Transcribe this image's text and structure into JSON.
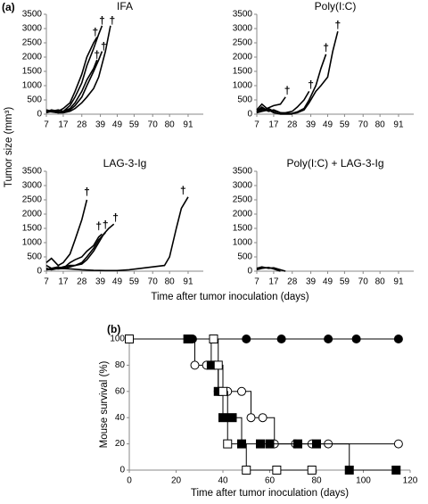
{
  "figure": {
    "label_a": "(a)",
    "label_b": "(b)",
    "y_label_a": "Tumor size (mm³)",
    "x_label_a": "Time after tumor inoculation (days)"
  },
  "chart_data": [
    {
      "type": "line",
      "title": "IFA",
      "xlim": [
        7,
        100
      ],
      "xticks": [
        7,
        17,
        28,
        39,
        49,
        59,
        70,
        80,
        91
      ],
      "ylim": [
        0,
        3500
      ],
      "yticks": [
        0,
        500,
        1000,
        1500,
        2000,
        2500,
        3000,
        3500
      ],
      "series": [
        {
          "color": "#000000",
          "x": [
            7,
            10,
            14,
            17,
            21,
            24,
            28,
            31,
            35,
            37
          ],
          "values": [
            80,
            150,
            100,
            200,
            400,
            800,
            1400,
            2000,
            2500,
            2700
          ]
        },
        {
          "color": "#000000",
          "x": [
            7,
            10,
            14,
            17,
            21,
            24,
            28,
            31,
            35,
            38,
            40
          ],
          "values": [
            100,
            120,
            60,
            100,
            300,
            600,
            1100,
            1700,
            2300,
            2800,
            3100
          ]
        },
        {
          "color": "#000000",
          "x": [
            7,
            10,
            14,
            17,
            21,
            24,
            28,
            31,
            35,
            37
          ],
          "values": [
            50,
            100,
            150,
            100,
            200,
            400,
            800,
            1200,
            1600,
            1900
          ]
        },
        {
          "color": "#000000",
          "x": [
            7,
            10,
            14,
            17,
            21,
            24,
            28,
            31,
            35,
            38,
            40
          ],
          "values": [
            100,
            80,
            50,
            80,
            150,
            300,
            600,
            1000,
            1500,
            1900,
            2200
          ]
        },
        {
          "color": "#000000",
          "x": [
            7,
            10,
            14,
            17,
            21,
            24,
            28,
            31,
            35,
            38,
            42,
            45
          ],
          "values": [
            150,
            100,
            50,
            50,
            100,
            200,
            400,
            600,
            900,
            1300,
            2200,
            3100
          ]
        }
      ],
      "annotations": [
        {
          "text": "†",
          "x": 36,
          "y": 2850
        },
        {
          "text": "†",
          "x": 40,
          "y": 3250
        },
        {
          "text": "†",
          "x": 37,
          "y": 2050
        },
        {
          "text": "†",
          "x": 41,
          "y": 2350
        },
        {
          "text": "†",
          "x": 46,
          "y": 3250
        }
      ]
    },
    {
      "type": "line",
      "title": "Poly(I:C)",
      "xlim": [
        7,
        100
      ],
      "xticks": [
        7,
        17,
        28,
        39,
        49,
        59,
        70,
        80,
        91
      ],
      "ylim": [
        0,
        3500
      ],
      "yticks": [
        0,
        500,
        1000,
        1500,
        2000,
        2500,
        3000,
        3500
      ],
      "series": [
        {
          "color": "#000000",
          "x": [
            7,
            10,
            13,
            17,
            21,
            24
          ],
          "values": [
            150,
            350,
            200,
            300,
            350,
            600
          ]
        },
        {
          "color": "#000000",
          "x": [
            7,
            10,
            14,
            17,
            21,
            24,
            28,
            31,
            35,
            38
          ],
          "values": [
            100,
            250,
            100,
            150,
            50,
            50,
            100,
            250,
            500,
            800
          ]
        },
        {
          "color": "#000000",
          "x": [
            7,
            10,
            14,
            17,
            21,
            24,
            28,
            31,
            35,
            38,
            42,
            45,
            48
          ],
          "values": [
            50,
            150,
            200,
            100,
            50,
            20,
            30,
            80,
            200,
            500,
            1000,
            1600,
            2100
          ]
        },
        {
          "color": "#000000",
          "x": [
            7,
            10,
            14,
            17,
            21,
            24,
            28,
            31,
            35,
            38,
            42,
            45,
            49,
            52,
            55
          ],
          "values": [
            100,
            200,
            100,
            150,
            50,
            20,
            20,
            50,
            150,
            400,
            800,
            1000,
            1300,
            2200,
            2900
          ]
        },
        {
          "color": "#000000",
          "x": [
            7,
            10,
            14,
            17,
            21,
            24,
            28
          ],
          "values": [
            50,
            100,
            150,
            50,
            0,
            0,
            0
          ]
        }
      ],
      "annotations": [
        {
          "text": "†",
          "x": 25,
          "y": 800
        },
        {
          "text": "†",
          "x": 39,
          "y": 1000
        },
        {
          "text": "†",
          "x": 48,
          "y": 2300
        },
        {
          "text": "†",
          "x": 55,
          "y": 3100
        }
      ]
    },
    {
      "type": "line",
      "title": "LAG-3-Ig",
      "xlim": [
        7,
        100
      ],
      "xticks": [
        7,
        17,
        28,
        39,
        49,
        59,
        70,
        80,
        91
      ],
      "ylim": [
        0,
        3500
      ],
      "yticks": [
        0,
        500,
        1000,
        1500,
        2000,
        2500,
        3000,
        3500
      ],
      "series": [
        {
          "color": "#000000",
          "x": [
            7,
            10,
            14,
            17,
            21,
            24,
            28,
            31
          ],
          "values": [
            300,
            450,
            200,
            300,
            600,
            1100,
            1800,
            2500
          ]
        },
        {
          "color": "#000000",
          "x": [
            7,
            10,
            14,
            17,
            21,
            24,
            28,
            31,
            35,
            38,
            40
          ],
          "values": [
            200,
            100,
            150,
            100,
            300,
            400,
            500,
            700,
            900,
            1200,
            1300
          ]
        },
        {
          "color": "#000000",
          "x": [
            7,
            10,
            14,
            17,
            21,
            24,
            28,
            31,
            35,
            38,
            42
          ],
          "values": [
            100,
            50,
            100,
            150,
            200,
            200,
            300,
            500,
            800,
            1100,
            1350
          ]
        },
        {
          "color": "#000000",
          "x": [
            7,
            10,
            14,
            17,
            21,
            24,
            28,
            31,
            35,
            38,
            41,
            44,
            47
          ],
          "values": [
            50,
            100,
            80,
            100,
            150,
            200,
            250,
            400,
            700,
            1000,
            1300,
            1500,
            1650
          ]
        },
        {
          "color": "#000000",
          "x": [
            7,
            14,
            21,
            28,
            35,
            42,
            49,
            56,
            63,
            70,
            77,
            80,
            84,
            87,
            91
          ],
          "values": [
            50,
            100,
            80,
            50,
            30,
            20,
            20,
            50,
            100,
            150,
            200,
            500,
            1500,
            2200,
            2600
          ]
        }
      ],
      "annotations": [
        {
          "text": "†",
          "x": 31,
          "y": 2750
        },
        {
          "text": "†",
          "x": 38,
          "y": 1550
        },
        {
          "text": "†",
          "x": 42,
          "y": 1600
        },
        {
          "text": "†",
          "x": 48,
          "y": 1850
        },
        {
          "text": "†",
          "x": 88,
          "y": 2800
        }
      ]
    },
    {
      "type": "line",
      "title": "Poly(I:C) + LAG-3-Ig",
      "xlim": [
        7,
        100
      ],
      "xticks": [
        7,
        17,
        28,
        39,
        49,
        59,
        70,
        80,
        91
      ],
      "ylim": [
        0,
        3500
      ],
      "yticks": [
        0,
        500,
        1000,
        1500,
        2000,
        2500,
        3000,
        3500
      ],
      "series": [
        {
          "color": "#000000",
          "x": [
            7,
            10,
            14,
            17,
            21,
            24
          ],
          "values": [
            100,
            150,
            100,
            120,
            50,
            0
          ]
        },
        {
          "color": "#000000",
          "x": [
            7,
            10,
            14,
            17,
            21
          ],
          "values": [
            50,
            100,
            130,
            80,
            0
          ]
        }
      ],
      "annotations": []
    },
    {
      "type": "step",
      "x_label": "Time after tumor inoculation (days)",
      "y_label": "Mouse survival (%)",
      "xlim": [
        0,
        120
      ],
      "xticks": [
        0,
        20,
        40,
        60,
        80,
        100,
        120
      ],
      "ylim": [
        0,
        100
      ],
      "yticks": [
        0,
        20,
        40,
        60,
        80,
        100
      ],
      "series": [
        {
          "color": "#000000",
          "marker": "circle",
          "marker_fill": "#000000",
          "x": [
            0,
            27,
            36,
            50,
            65,
            85,
            97,
            115
          ],
          "values": [
            100,
            100,
            100,
            100,
            100,
            100,
            100,
            100
          ]
        },
        {
          "color": "#000000",
          "marker": "circle",
          "marker_fill": "#ffffff",
          "x": [
            0,
            28,
            33,
            38,
            42,
            48,
            52,
            57,
            62,
            71,
            78,
            85,
            115
          ],
          "values": [
            100,
            80,
            80,
            60,
            60,
            60,
            40,
            40,
            20,
            20,
            20,
            20,
            20
          ]
        },
        {
          "color": "#000000",
          "marker": "square",
          "marker_fill": "#000000",
          "x": [
            0,
            25,
            35,
            38,
            40,
            44,
            48,
            56,
            60,
            72,
            80,
            94,
            114
          ],
          "values": [
            100,
            100,
            80,
            60,
            40,
            40,
            20,
            20,
            20,
            20,
            20,
            0,
            0
          ]
        },
        {
          "color": "#000000",
          "marker": "square",
          "marker_fill": "#ffffff",
          "x": [
            0,
            36,
            38,
            40,
            42,
            50,
            63,
            78
          ],
          "values": [
            100,
            100,
            80,
            60,
            20,
            0,
            0,
            0
          ]
        }
      ],
      "annotations": []
    }
  ]
}
